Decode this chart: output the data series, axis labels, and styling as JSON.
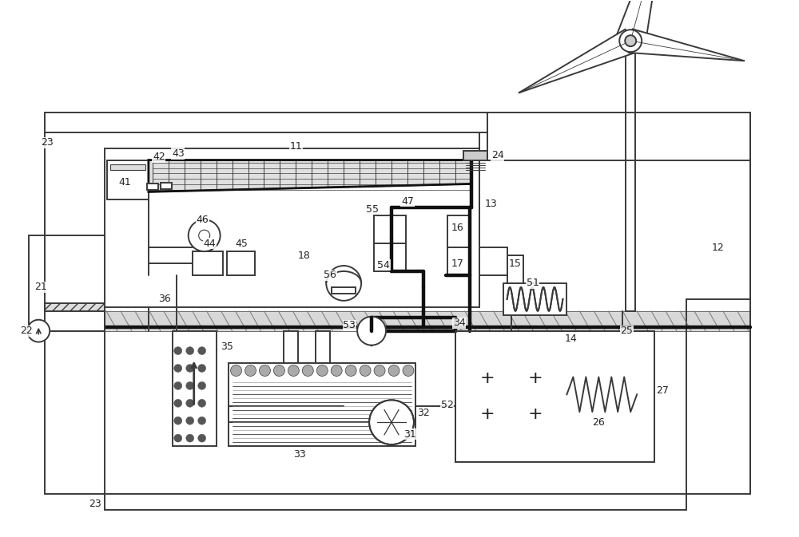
{
  "bg_color": "#ffffff",
  "lc": "#3a3a3a",
  "lw": 1.4,
  "tlw": 3.2,
  "figsize": [
    10.0,
    6.73
  ],
  "dpi": 100
}
